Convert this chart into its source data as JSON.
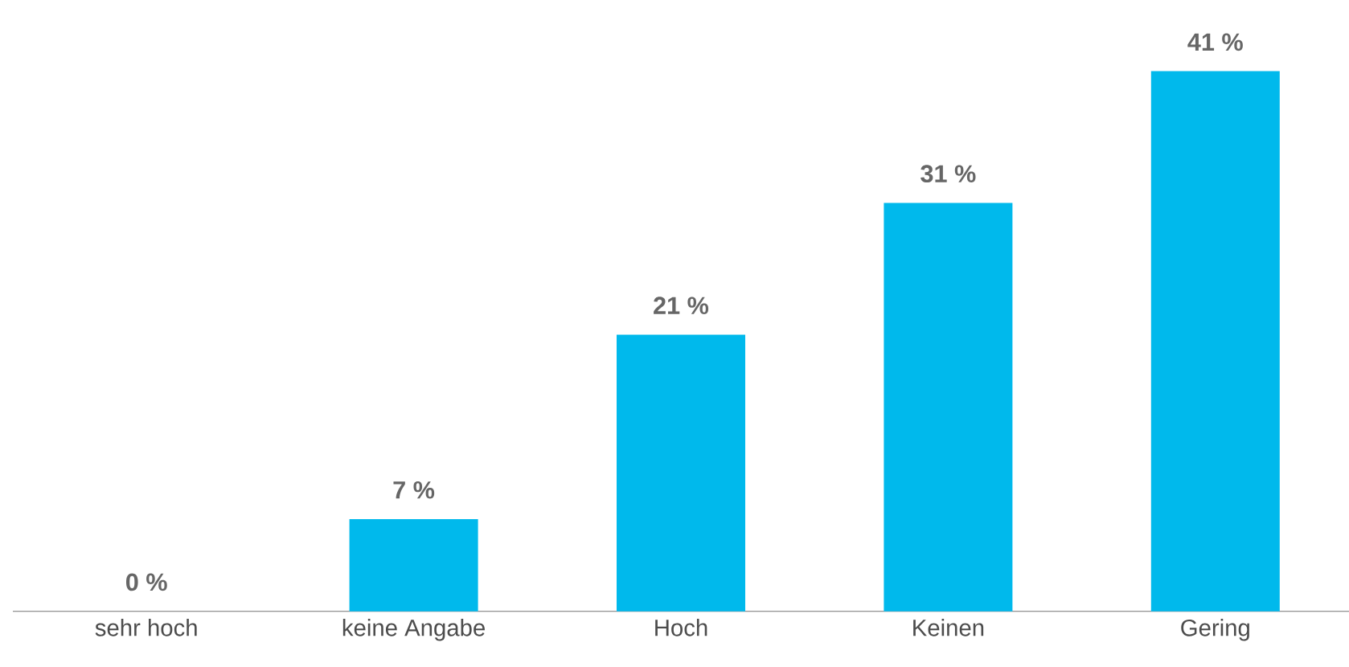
{
  "chart_data": {
    "type": "bar",
    "categories": [
      "sehr hoch",
      "keine Angabe",
      "Hoch",
      "Keinen",
      "Gering"
    ],
    "values": [
      0,
      7,
      21,
      31,
      41
    ],
    "value_labels": [
      "0 %",
      "7 %",
      "21 %",
      "31 %",
      "41 %"
    ],
    "color": "#00b9ec"
  }
}
